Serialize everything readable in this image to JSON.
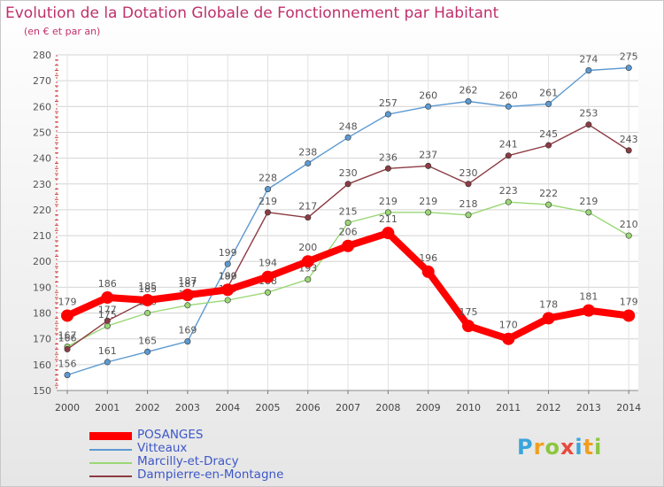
{
  "chart_data": {
    "type": "line",
    "title": "Evolution de la Dotation Globale de Fonctionnement par Habitant",
    "subtitle": "(en € et par an)",
    "xlabel": "",
    "ylabel": "",
    "categories": [
      "2000",
      "2001",
      "2002",
      "2003",
      "2004",
      "2005",
      "2006",
      "2007",
      "2008",
      "2009",
      "2010",
      "2011",
      "2012",
      "2013",
      "2014"
    ],
    "ylim": [
      150,
      280
    ],
    "yticks": [
      150,
      160,
      170,
      180,
      190,
      200,
      210,
      220,
      230,
      240,
      250,
      260,
      270,
      280
    ],
    "grid": true,
    "legend_position": "bottom-left",
    "series": [
      {
        "name": "Vitteaux",
        "color": "#5d9ad2",
        "values": [
          156,
          161,
          165,
          169,
          199,
          228,
          238,
          248,
          257,
          260,
          262,
          260,
          261,
          274,
          275
        ]
      },
      {
        "name": "Marcilly-et-Dracy",
        "color": "#9ad775",
        "values": [
          167,
          175,
          180,
          183,
          185,
          188,
          193,
          215,
          219,
          219,
          218,
          223,
          222,
          219,
          210
        ]
      },
      {
        "name": "Dampierre-en-Montagne",
        "color": "#8c3b43",
        "values": [
          166,
          177,
          185,
          187,
          190,
          219,
          217,
          230,
          236,
          237,
          230,
          241,
          245,
          253,
          243
        ]
      },
      {
        "name": "POSANGES",
        "color": "#ff0000",
        "values": [
          179,
          186,
          185,
          187,
          189,
          194,
          200,
          206,
          211,
          196,
          175,
          170,
          178,
          181,
          179
        ]
      }
    ],
    "legend_order": [
      "POSANGES",
      "Vitteaux",
      "Marcilly-et-Dracy",
      "Dampierre-en-Montagne"
    ]
  },
  "brand": {
    "text": "Proxiti",
    "letters": [
      {
        "ch": "P",
        "color": "#3aa5dc"
      },
      {
        "ch": "r",
        "color": "#f0a020"
      },
      {
        "ch": "o",
        "color": "#8dc63f"
      },
      {
        "ch": "x",
        "color": "#e84a3c"
      },
      {
        "ch": "i",
        "color": "#3aa5dc"
      },
      {
        "ch": "t",
        "color": "#f0a020"
      },
      {
        "ch": "i",
        "color": "#8dc63f"
      }
    ]
  }
}
